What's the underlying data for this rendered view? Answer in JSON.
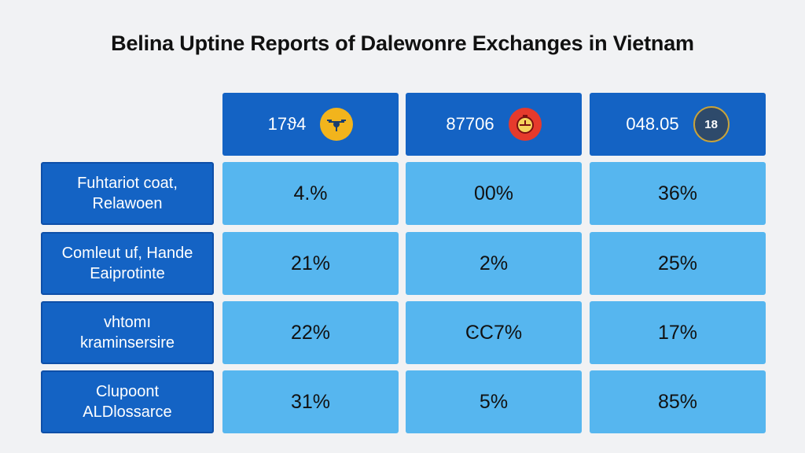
{
  "chart_data": {
    "type": "table",
    "title": "Belina Uptine Reports of Dalewonre Exchanges in Vietnam",
    "columns": [
      {
        "label": "17ϑ4",
        "icon": "drone-icon",
        "icon_text": "",
        "icon_color": "#f2b41c"
      },
      {
        "label": "87706",
        "icon": "stopwatch-icon",
        "icon_text": "",
        "icon_color": "#e63a2c"
      },
      {
        "label": "048.05",
        "icon": "crown-badge-icon",
        "icon_text": "18",
        "icon_color": "#2e4a6b"
      }
    ],
    "rows": [
      {
        "label_line1": "Fuhtariot coat,",
        "label_line2": "Relawoen",
        "values": [
          "4.%",
          "00%",
          "36%"
        ]
      },
      {
        "label_line1": "Comleut uf, Hande",
        "label_line2": "Eaiprotinte",
        "values": [
          "21%",
          "2%",
          "25%"
        ]
      },
      {
        "label_line1": "vhtomı",
        "label_line2": "kraminsersire",
        "values": [
          "22%",
          "ϾC7%",
          "17%"
        ]
      },
      {
        "label_line1": "Clupoont",
        "label_line2": "ALDlossarce",
        "values": [
          "31%",
          "5%",
          "85%"
        ]
      }
    ]
  }
}
